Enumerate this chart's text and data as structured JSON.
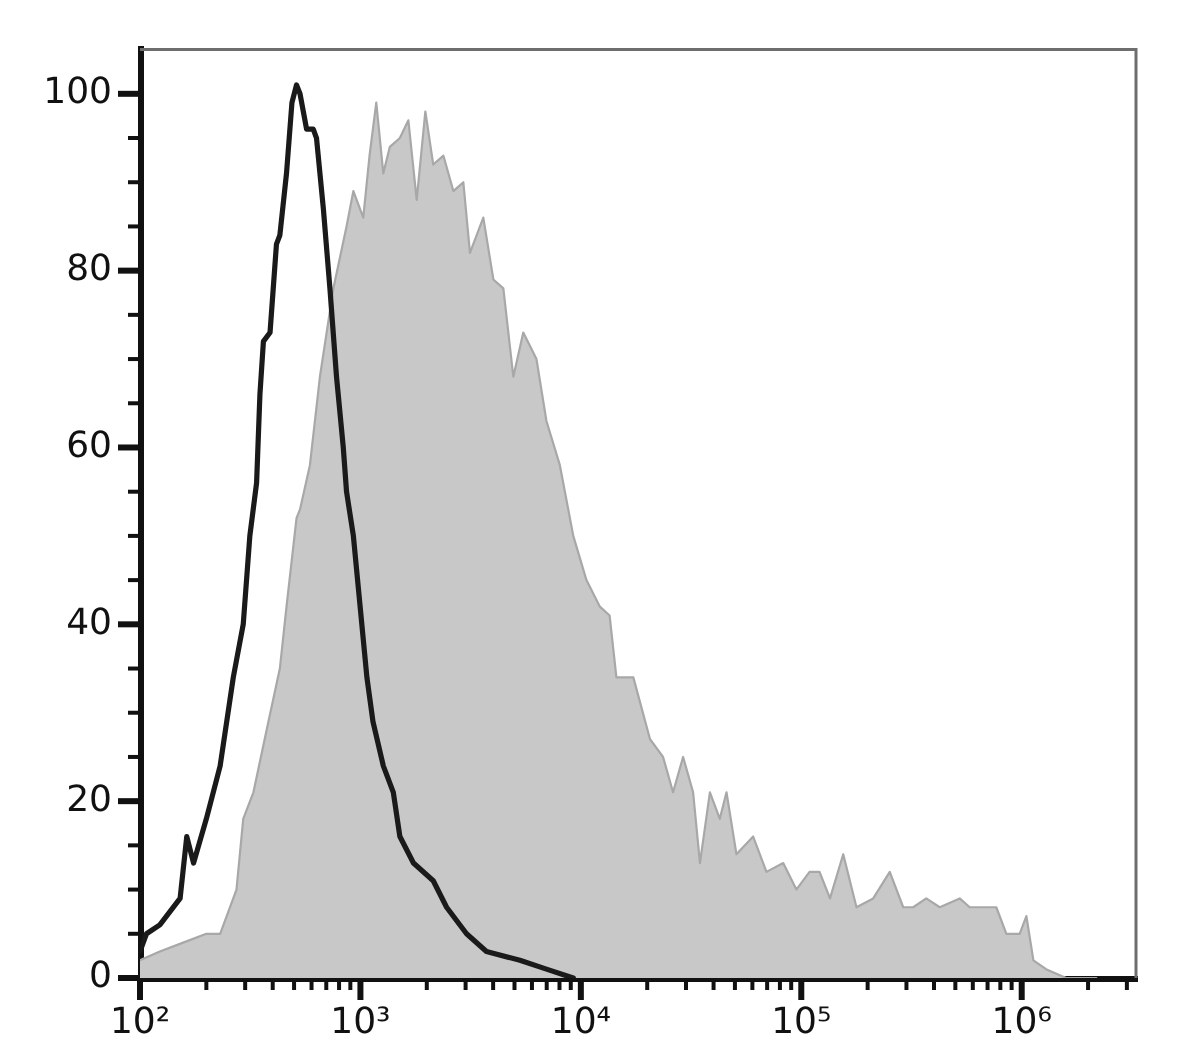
{
  "chart_data": {
    "type": "line",
    "log": "x",
    "marker": "none",
    "series": [
      {
        "color": "#1a1a1a",
        "x": [
          100,
          107,
          123,
          152,
          163,
          175,
          200,
          231,
          265,
          294,
          315,
          338,
          350,
          363,
          389,
          416,
          431,
          462,
          489,
          513,
          532,
          570,
          611,
          632,
          679,
          727,
          779,
          836,
          865,
          929,
          1070,
          1140,
          1270,
          1410,
          1510,
          1740,
          2140,
          2460,
          3030,
          3730,
          5290,
          6980,
          9240
        ],
        "values": [
          3,
          5,
          6,
          9,
          16,
          13,
          18,
          24,
          34,
          40,
          50,
          56,
          66,
          72,
          73,
          83,
          84,
          91,
          99,
          101,
          100,
          96,
          96,
          95,
          87,
          78,
          68,
          60,
          55,
          50,
          34,
          29,
          24,
          21,
          16,
          13,
          11,
          8,
          5,
          3,
          2,
          1,
          0
        ]
      },
      {
        "type": "area",
        "color": "#c8c8c8",
        "x": [
          100,
          123,
          157,
          200,
          231,
          274,
          294,
          327,
          375,
          431,
          462,
          513,
          532,
          590,
          655,
          754,
          865,
          929,
          1030,
          1100,
          1180,
          1270,
          1360,
          1510,
          1650,
          1800,
          1970,
          2140,
          2380,
          2640,
          2930,
          3140,
          3610,
          4010,
          4450,
          4940,
          5480,
          6290,
          6980,
          8030,
          9240,
          10600,
          12200,
          13500,
          14500,
          17300,
          20600,
          23600,
          26200,
          29100,
          32300,
          34700,
          38500,
          42700,
          45800,
          50800,
          60500,
          69500,
          82800,
          95000,
          109000,
          121000,
          135000,
          155000,
          178000,
          212000,
          252000,
          290000,
          322000,
          369000,
          425000,
          523000,
          581000,
          668000,
          767000,
          852000,
          979000,
          1050000,
          1130000,
          1290000,
          1590000,
          2180000
        ],
        "values": [
          2,
          3,
          4,
          5,
          5,
          10,
          18,
          21,
          28,
          35,
          42,
          52,
          53,
          58,
          68,
          78,
          85,
          89,
          86,
          93,
          99,
          91,
          94,
          95,
          97,
          88,
          98,
          92,
          93,
          89,
          90,
          82,
          86,
          79,
          78,
          68,
          73,
          70,
          63,
          58,
          50,
          45,
          42,
          41,
          34,
          34,
          27,
          25,
          21,
          25,
          21,
          13,
          21,
          18,
          21,
          14,
          16,
          12,
          13,
          10,
          12,
          12,
          9,
          14,
          8,
          9,
          12,
          8,
          8,
          9,
          8,
          9,
          8,
          8,
          8,
          5,
          5,
          7,
          2,
          1,
          0,
          0
        ]
      }
    ],
    "xlim": [
      100,
      3300000
    ],
    "xticks": [
      {
        "value": 100,
        "label": "10²"
      },
      {
        "value": 200,
        "label": null
      },
      {
        "value": 300,
        "label": null
      },
      {
        "value": 400,
        "label": null
      },
      {
        "value": 500,
        "label": null
      },
      {
        "value": 600,
        "label": null
      },
      {
        "value": 700,
        "label": null
      },
      {
        "value": 800,
        "label": null
      },
      {
        "value": 900,
        "label": null
      },
      {
        "value": 1000,
        "label": "10³"
      },
      {
        "value": 2000,
        "label": null
      },
      {
        "value": 3000,
        "label": null
      },
      {
        "value": 4000,
        "label": null
      },
      {
        "value": 5000,
        "label": null
      },
      {
        "value": 6000,
        "label": null
      },
      {
        "value": 7000,
        "label": null
      },
      {
        "value": 8000,
        "label": null
      },
      {
        "value": 9000,
        "label": null
      },
      {
        "value": 10000,
        "label": "10⁴"
      },
      {
        "value": 20000,
        "label": null
      },
      {
        "value": 30000,
        "label": null
      },
      {
        "value": 40000,
        "label": null
      },
      {
        "value": 50000,
        "label": null
      },
      {
        "value": 60000,
        "label": null
      },
      {
        "value": 70000,
        "label": null
      },
      {
        "value": 80000,
        "label": null
      },
      {
        "value": 90000,
        "label": null
      },
      {
        "value": 100000,
        "label": "10⁵"
      },
      {
        "value": 200000,
        "label": null
      },
      {
        "value": 300000,
        "label": null
      },
      {
        "value": 400000,
        "label": null
      },
      {
        "value": 500000,
        "label": null
      },
      {
        "value": 600000,
        "label": null
      },
      {
        "value": 700000,
        "label": null
      },
      {
        "value": 800000,
        "label": null
      },
      {
        "value": 900000,
        "label": null
      },
      {
        "value": 1000000,
        "label": "10⁶"
      },
      {
        "value": 2000000,
        "label": null
      },
      {
        "value": 3000000,
        "label": null
      }
    ],
    "ylim": [
      0,
      105
    ],
    "yticks": [
      0,
      {
        "value": 5,
        "label": null
      },
      {
        "value": 10,
        "label": null
      },
      {
        "value": 15,
        "label": null
      },
      20,
      {
        "value": 25,
        "label": null
      },
      {
        "value": 30,
        "label": null
      },
      {
        "value": 35,
        "label": null
      },
      40,
      {
        "value": 45,
        "label": null
      },
      {
        "value": 50,
        "label": null
      },
      {
        "value": 55,
        "label": null
      },
      60,
      {
        "value": 65,
        "label": null
      },
      {
        "value": 70,
        "label": null
      },
      {
        "value": 75,
        "label": null
      },
      80,
      {
        "value": 85,
        "label": null
      },
      {
        "value": 90,
        "label": null
      },
      {
        "value": 95,
        "label": null
      },
      100
    ]
  }
}
